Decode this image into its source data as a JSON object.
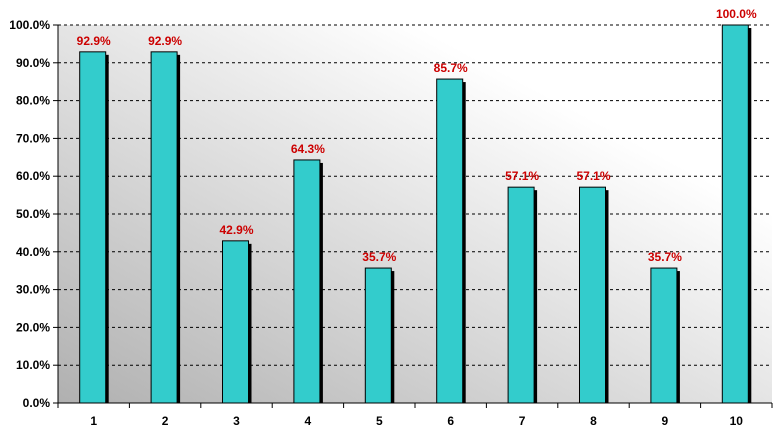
{
  "chart_data": {
    "type": "bar",
    "title": "",
    "xlabel": "",
    "ylabel": "",
    "categories": [
      "1",
      "2",
      "3",
      "4",
      "5",
      "6",
      "7",
      "8",
      "9",
      "10"
    ],
    "values": [
      92.9,
      92.9,
      42.9,
      64.3,
      35.7,
      85.7,
      57.1,
      57.1,
      35.7,
      100.0
    ],
    "data_labels": [
      "92.9%",
      "92.9%",
      "42.9%",
      "64.3%",
      "35.7%",
      "85.7%",
      "57.1%",
      "57.1%",
      "35.7%",
      "100.0%"
    ],
    "y_ticks": [
      "0.0%",
      "10.0%",
      "20.0%",
      "30.0%",
      "40.0%",
      "50.0%",
      "60.0%",
      "70.0%",
      "80.0%",
      "90.0%",
      "100.0%"
    ],
    "ylim": [
      0,
      100
    ],
    "grid": true,
    "legend": "none",
    "colors": {
      "bar": "#33CCCC",
      "bar_shadow": "#000000",
      "data_label": "#CC0000",
      "gridline": "#000000",
      "plot_gradient_dark": "#B0B0B0",
      "plot_gradient_light": "#FFFFFF"
    }
  }
}
